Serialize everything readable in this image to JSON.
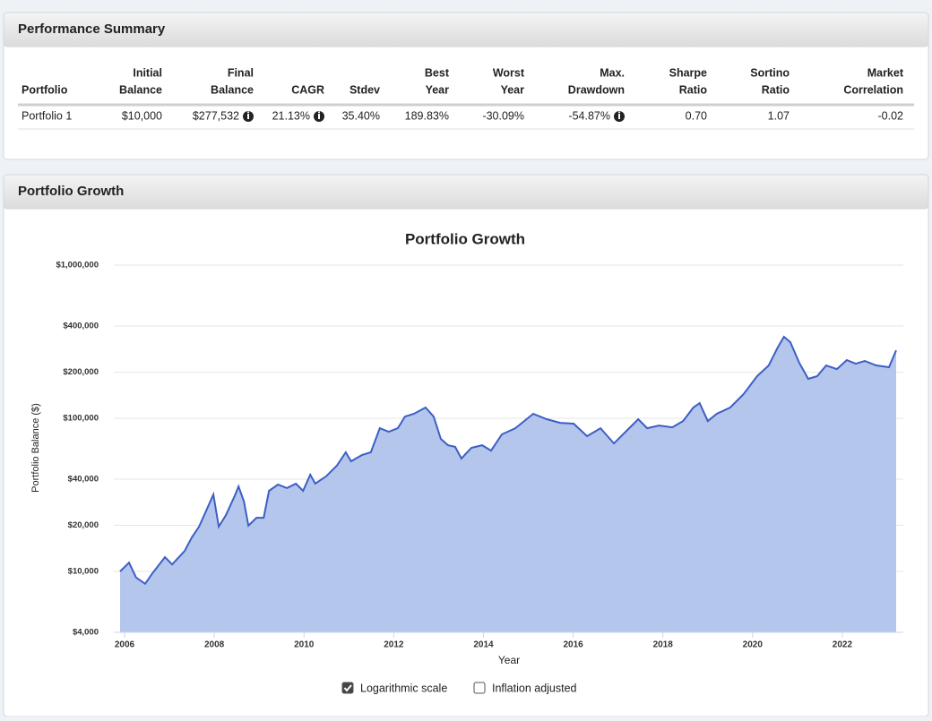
{
  "performance_summary": {
    "title": "Performance Summary",
    "columns": [
      [
        "Portfolio"
      ],
      [
        "Initial",
        "Balance"
      ],
      [
        "Final",
        "Balance"
      ],
      [
        "CAGR"
      ],
      [
        "Stdev"
      ],
      [
        "Best",
        "Year"
      ],
      [
        "Worst",
        "Year"
      ],
      [
        "Max.",
        "Drawdown"
      ],
      [
        "Sharpe",
        "Ratio"
      ],
      [
        "Sortino",
        "Ratio"
      ],
      [
        "Market",
        "Correlation"
      ]
    ],
    "rows": [
      [
        "Portfolio 1",
        "$10,000",
        "$277,532",
        "21.13%",
        "35.40%",
        "189.83%",
        "-30.09%",
        "-54.87%",
        "0.70",
        "1.07",
        "-0.02"
      ]
    ]
  },
  "portfolio_growth": {
    "title": "Portfolio Growth"
  },
  "chart_data": {
    "type": "area",
    "title": "Portfolio Growth",
    "x_label": "Year",
    "y_label": "Portfolio Balance ($)",
    "log_scale": true,
    "grid": true,
    "color": "#3d5fc4",
    "fill_color": "#b4c6ec",
    "xlim": [
      2005.76,
      2023.36
    ],
    "xticks": [
      2006,
      2008,
      2010,
      2012,
      2014,
      2016,
      2018,
      2020,
      2022
    ],
    "ylim": [
      4000,
      1000000
    ],
    "yticks": [
      {
        "value": 4000,
        "label": "$4,000"
      },
      {
        "value": 10000,
        "label": "$10,000"
      },
      {
        "value": 20000,
        "label": "$20,000"
      },
      {
        "value": 40000,
        "label": "$40,000"
      },
      {
        "value": 100000,
        "label": "$100,000"
      },
      {
        "value": 200000,
        "label": "$200,000"
      },
      {
        "value": 400000,
        "label": "$400,000"
      },
      {
        "value": 1000000,
        "label": "$1,000,000"
      }
    ],
    "x": [
      2005.9,
      2006.1,
      2006.26,
      2006.46,
      2006.62,
      2006.9,
      2007.06,
      2007.34,
      2007.5,
      2007.66,
      2007.82,
      2007.98,
      2008.1,
      2008.26,
      2008.46,
      2008.54,
      2008.66,
      2008.76,
      2008.94,
      2009.1,
      2009.22,
      2009.42,
      2009.62,
      2009.82,
      2009.98,
      2010.14,
      2010.25,
      2010.49,
      2010.73,
      2010.93,
      2011.05,
      2011.29,
      2011.49,
      2011.69,
      2011.89,
      2012.09,
      2012.25,
      2012.45,
      2012.71,
      2012.89,
      2013.05,
      2013.21,
      2013.37,
      2013.51,
      2013.73,
      2013.97,
      2014.17,
      2014.41,
      2014.71,
      2014.91,
      2015.11,
      2015.41,
      2015.71,
      2016.01,
      2016.31,
      2016.61,
      2016.91,
      2017.21,
      2017.45,
      2017.65,
      2017.91,
      2018.21,
      2018.45,
      2018.68,
      2018.82,
      2019.0,
      2019.2,
      2019.5,
      2019.8,
      2020.1,
      2020.36,
      2020.56,
      2020.7,
      2020.84,
      2021.04,
      2021.24,
      2021.44,
      2021.64,
      2021.88,
      2022.1,
      2022.3,
      2022.5,
      2022.76,
      2023.04,
      2023.2
    ],
    "values": [
      10000,
      11400,
      9100,
      8300,
      9700,
      12400,
      11100,
      13600,
      16700,
      19600,
      24900,
      31800,
      19600,
      23300,
      31400,
      35900,
      28600,
      19900,
      22400,
      22400,
      33600,
      36900,
      35000,
      37400,
      33600,
      42800,
      37400,
      41700,
      49000,
      59900,
      52400,
      57500,
      59900,
      86100,
      81700,
      86100,
      102600,
      106900,
      117500,
      102600,
      73300,
      66700,
      65100,
      54600,
      64100,
      66700,
      61500,
      78400,
      86100,
      95900,
      106900,
      98600,
      93300,
      92200,
      76400,
      86100,
      68500,
      83900,
      98600,
      86100,
      89700,
      87300,
      95900,
      117500,
      125600,
      95900,
      106900,
      117500,
      143800,
      188300,
      221300,
      289700,
      340400,
      314100,
      230100,
      180700,
      188300,
      221300,
      209400,
      239900,
      227000,
      236600,
      221300,
      215300,
      277532
    ]
  },
  "controls": [
    {
      "label": "Logarithmic scale",
      "checked": true
    },
    {
      "label": "Inflation adjusted",
      "checked": false
    }
  ]
}
